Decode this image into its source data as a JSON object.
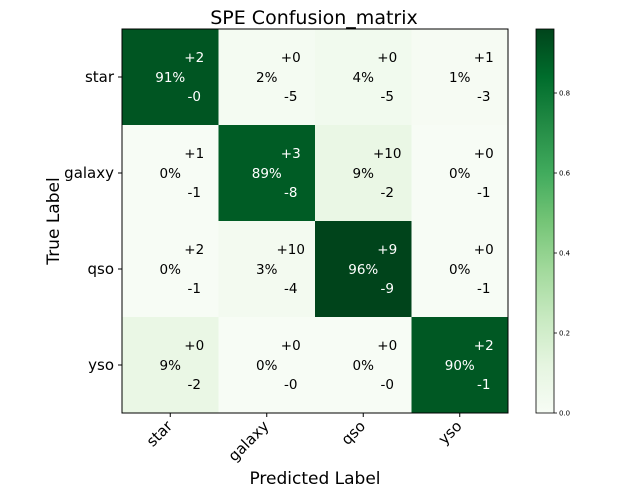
{
  "chart_data": {
    "type": "heatmap",
    "title": "SPE Confusion_matrix",
    "xlabel": "Predicted Label",
    "ylabel": "True Label",
    "x_categories": [
      "star",
      "galaxy",
      "qso",
      "yso"
    ],
    "y_categories": [
      "star",
      "galaxy",
      "qso",
      "yso"
    ],
    "percent_labels": [
      [
        "91%",
        "2%",
        "4%",
        "1%"
      ],
      [
        "0%",
        "89%",
        "9%",
        "0%"
      ],
      [
        "0%",
        "3%",
        "96%",
        "0%"
      ],
      [
        "9%",
        "0%",
        "0%",
        "90%"
      ]
    ],
    "plus_labels": [
      [
        "+2",
        "+0",
        "+0",
        "+1"
      ],
      [
        "+1",
        "+3",
        "+10",
        "+0"
      ],
      [
        "+2",
        "+10",
        "+9",
        "+0"
      ],
      [
        "+0",
        "+0",
        "+0",
        "+2"
      ]
    ],
    "minus_labels": [
      [
        "-0",
        "-5",
        "-5",
        "-3"
      ],
      [
        "-1",
        "-8",
        "-2",
        "-1"
      ],
      [
        "-1",
        "-4",
        "-9",
        "-1"
      ],
      [
        "-2",
        "-0",
        "-0",
        "-1"
      ]
    ],
    "values": [
      [
        0.91,
        0.02,
        0.04,
        0.01
      ],
      [
        0.0,
        0.89,
        0.09,
        0.0
      ],
      [
        0.0,
        0.03,
        0.96,
        0.0
      ],
      [
        0.09,
        0.0,
        0.0,
        0.9
      ]
    ],
    "colorbar": {
      "ticks": [
        0.0,
        0.2,
        0.4,
        0.6,
        0.8
      ],
      "tick_labels": [
        "0.0",
        "0.2",
        "0.4",
        "0.6",
        "0.8"
      ],
      "range": [
        0,
        0.96
      ]
    },
    "colormap": "Greens",
    "grid": false
  }
}
